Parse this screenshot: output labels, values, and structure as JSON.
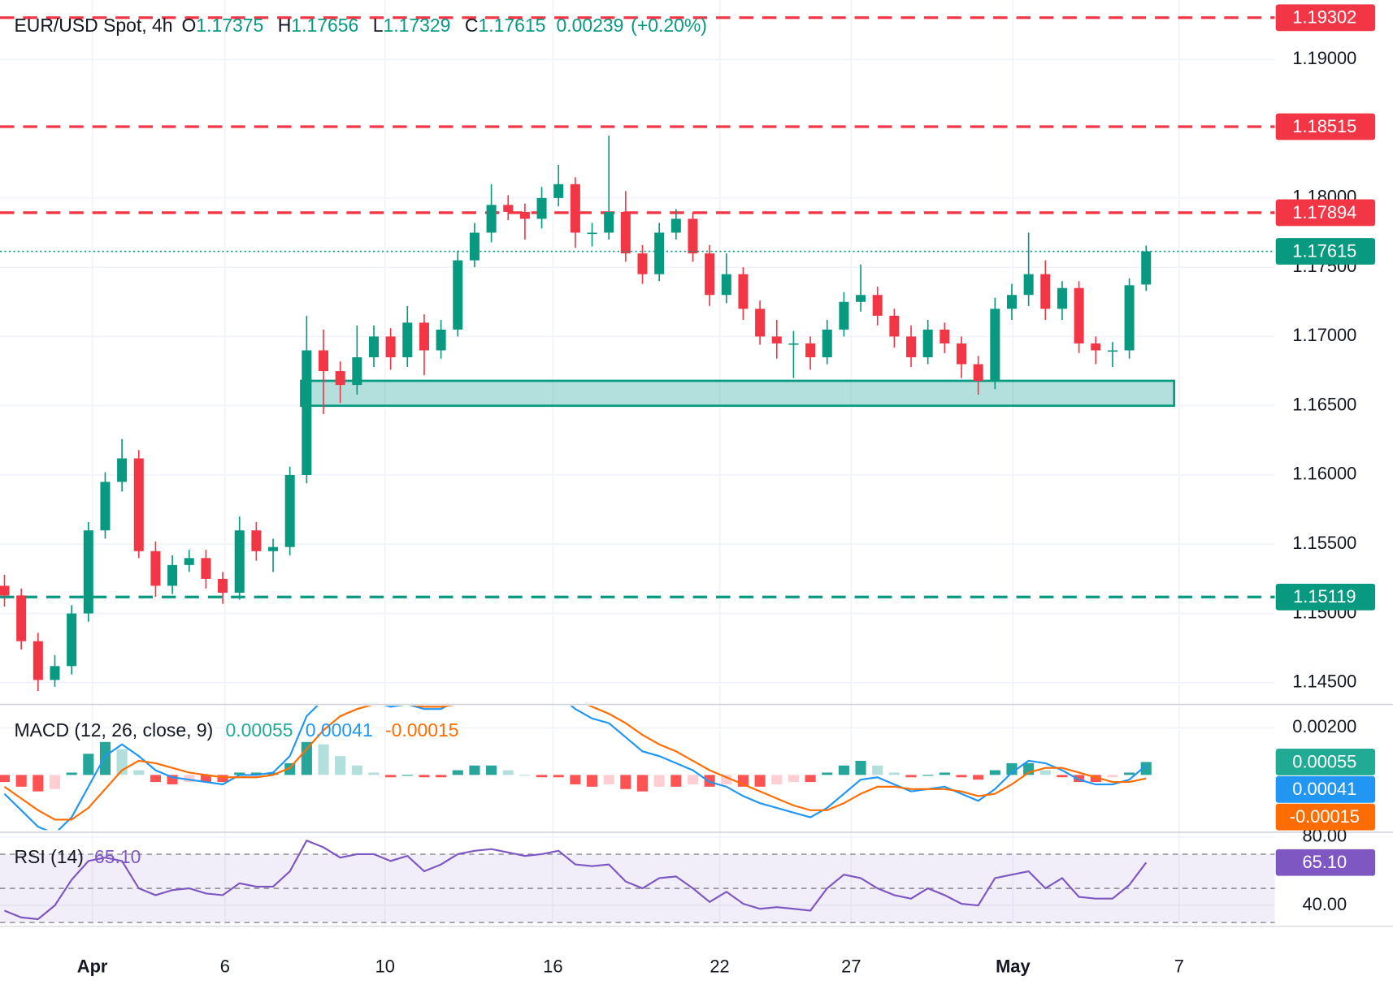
{
  "chart_data": {
    "type": "candlestick",
    "title": "EUR/USD Spot, 4h",
    "header": {
      "labels": [
        "O",
        "H",
        "L",
        "C"
      ],
      "change": 0.00239,
      "change_pct": "(+0.20%)"
    },
    "up_color": "#089981",
    "down_color": "#f23645",
    "x": [
      0,
      3,
      6,
      9,
      12,
      15,
      18,
      21,
      24,
      27,
      30,
      33,
      36,
      39,
      42,
      45,
      48,
      51,
      54,
      57,
      60,
      63,
      66,
      69,
      72,
      75,
      78,
      81,
      84,
      87,
      90,
      93,
      96,
      99,
      102,
      105,
      108,
      111,
      114,
      117,
      120,
      123,
      126,
      129,
      132,
      135,
      138,
      141,
      144,
      147,
      150,
      153,
      156,
      159,
      162,
      165,
      168,
      171,
      174,
      177,
      180,
      183,
      186,
      189,
      192,
      195,
      198,
      201,
      204
    ],
    "open": [
      1.152,
      1.1513,
      1.148,
      1.1452,
      1.1462,
      1.15,
      1.156,
      1.1595,
      1.1612,
      1.1545,
      1.152,
      1.1535,
      1.154,
      1.1525,
      1.1515,
      1.156,
      1.1545,
      1.1548,
      1.16,
      1.169,
      1.1675,
      1.1665,
      1.1685,
      1.17,
      1.1685,
      1.171,
      1.169,
      1.1705,
      1.1755,
      1.1775,
      1.1795,
      1.179,
      1.1785,
      1.18,
      1.181,
      1.1775,
      1.1775,
      1.179,
      1.176,
      1.1745,
      1.1775,
      1.1785,
      1.176,
      1.173,
      1.1745,
      1.172,
      1.17,
      1.1695,
      1.1695,
      1.1685,
      1.1705,
      1.1725,
      1.173,
      1.1715,
      1.17,
      1.1685,
      1.1705,
      1.1695,
      1.168,
      1.1668,
      1.172,
      1.173,
      1.1745,
      1.172,
      1.1735,
      1.1695,
      1.169,
      1.169,
      1.17375
    ],
    "high": [
      1.1528,
      1.1518,
      1.1486,
      1.147,
      1.1506,
      1.1566,
      1.1602,
      1.1626,
      1.1618,
      1.1552,
      1.1542,
      1.1546,
      1.1546,
      1.153,
      1.157,
      1.1566,
      1.1554,
      1.1606,
      1.1715,
      1.1705,
      1.1682,
      1.1708,
      1.1708,
      1.1706,
      1.1722,
      1.1716,
      1.1712,
      1.1762,
      1.1782,
      1.181,
      1.1802,
      1.1796,
      1.1808,
      1.1824,
      1.1815,
      1.1782,
      1.1845,
      1.1805,
      1.1766,
      1.1782,
      1.1792,
      1.179,
      1.1766,
      1.176,
      1.175,
      1.1726,
      1.1712,
      1.1704,
      1.17,
      1.1712,
      1.1732,
      1.1752,
      1.1736,
      1.172,
      1.1708,
      1.1712,
      1.171,
      1.17,
      1.1686,
      1.1728,
      1.1738,
      1.1775,
      1.1755,
      1.174,
      1.174,
      1.17,
      1.1696,
      1.1742,
      1.17656
    ],
    "low": [
      1.1505,
      1.1474,
      1.1444,
      1.1447,
      1.1456,
      1.1494,
      1.1554,
      1.1588,
      1.154,
      1.1512,
      1.1514,
      1.153,
      1.1518,
      1.1507,
      1.151,
      1.1538,
      1.153,
      1.1542,
      1.1594,
      1.1644,
      1.1652,
      1.1658,
      1.1678,
      1.1676,
      1.1678,
      1.1672,
      1.1684,
      1.17,
      1.175,
      1.1768,
      1.1784,
      1.177,
      1.1778,
      1.1794,
      1.1764,
      1.1765,
      1.177,
      1.1754,
      1.1738,
      1.174,
      1.177,
      1.1754,
      1.1722,
      1.1724,
      1.1712,
      1.1694,
      1.1684,
      1.167,
      1.1676,
      1.168,
      1.17,
      1.1718,
      1.1708,
      1.1692,
      1.1678,
      1.168,
      1.1688,
      1.167,
      1.1658,
      1.1662,
      1.1712,
      1.1722,
      1.1712,
      1.1712,
      1.1688,
      1.168,
      1.1678,
      1.1684,
      1.17329
    ],
    "close": [
      1.1513,
      1.148,
      1.1452,
      1.1462,
      1.15,
      1.156,
      1.1595,
      1.1612,
      1.1545,
      1.152,
      1.1535,
      1.154,
      1.1525,
      1.1515,
      1.156,
      1.1545,
      1.1548,
      1.16,
      1.169,
      1.1675,
      1.1665,
      1.1685,
      1.17,
      1.1685,
      1.171,
      1.169,
      1.1705,
      1.1755,
      1.1775,
      1.1795,
      1.179,
      1.1785,
      1.18,
      1.181,
      1.1775,
      1.1775,
      1.179,
      1.176,
      1.1745,
      1.1775,
      1.1785,
      1.176,
      1.173,
      1.1745,
      1.172,
      1.17,
      1.1695,
      1.1695,
      1.1685,
      1.1705,
      1.1725,
      1.173,
      1.1715,
      1.17,
      1.1685,
      1.1705,
      1.1695,
      1.168,
      1.1668,
      1.172,
      1.173,
      1.1745,
      1.172,
      1.1735,
      1.1695,
      1.169,
      1.169,
      1.1737,
      1.17615
    ],
    "xlim": [
      -0.8,
      227
    ],
    "xticks": [
      {
        "value": 15.7,
        "label": "Apr"
      },
      {
        "value": 39.4,
        "label": "6"
      },
      {
        "value": 68,
        "label": "10"
      },
      {
        "value": 98,
        "label": "16"
      },
      {
        "value": 127.8,
        "label": "22"
      },
      {
        "value": 151.3,
        "label": "27"
      },
      {
        "value": 180.2,
        "label": "May"
      },
      {
        "value": 209.9,
        "label": "7"
      }
    ],
    "ylim": [
      1.14353,
      1.19429
    ],
    "yticks": [
      {
        "value": 1.145,
        "label": "1.14500"
      },
      {
        "value": 1.15,
        "label": "1.15000"
      },
      {
        "value": 1.155,
        "label": "1.15500"
      },
      {
        "value": 1.16,
        "label": "1.16000"
      },
      {
        "value": 1.165,
        "label": "1.16500"
      },
      {
        "value": 1.17,
        "label": "1.17000"
      },
      {
        "value": 1.175,
        "label": "1.17500"
      },
      {
        "value": 1.18,
        "label": "1.18000"
      },
      {
        "value": 1.19,
        "label": "1.19000"
      }
    ],
    "grid": true,
    "levels": [
      {
        "value": 1.19302,
        "color": "#f23645"
      },
      {
        "value": 1.18515,
        "color": "#f23645"
      },
      {
        "value": 1.17894,
        "color": "#f23645"
      },
      {
        "value": 1.15119,
        "color": "#089981"
      }
    ],
    "zone": {
      "x": [
        53,
        209
      ],
      "y": [
        1.165,
        1.1668
      ],
      "color": "#26a69a"
    },
    "macd": {
      "title": "MACD (12, 26, close, 9)",
      "ylim": [
        -0.00234,
        0.00294
      ],
      "yticks": [
        {
          "value": 0.002,
          "label": "0.00200"
        }
      ],
      "histogram": {
        "color": "#22ab94",
        "values": [
          -0.0003,
          -0.0005,
          -0.0007,
          -0.0006,
          0.0001,
          0.0009,
          0.0014,
          0.0011,
          0.0002,
          -0.0003,
          -0.0004,
          -0.0003,
          -0.0003,
          -0.0003,
          0.0001,
          0.0001,
          0.0001,
          0.0005,
          0.0014,
          0.0013,
          0.0008,
          0.0004,
          0.0001,
          -0.0001,
          0.0,
          -0.0001,
          -0.0001,
          0.0002,
          0.0004,
          0.0004,
          0.0002,
          0.0,
          -0.0001,
          -0.0001,
          -0.0004,
          -0.0005,
          -0.0004,
          -0.0006,
          -0.0007,
          -0.0005,
          -0.0005,
          -0.0004,
          -0.0005,
          -0.0004,
          -0.0005,
          -0.0005,
          -0.0004,
          -0.0003,
          -0.0003,
          0.0001,
          0.0004,
          0.0006,
          0.0004,
          0.0001,
          -0.0001,
          0.0,
          0.0001,
          -0.0001,
          -0.0002,
          0.0002,
          0.0005,
          0.0005,
          0.0002,
          -0.0001,
          -0.0003,
          -0.0003,
          -0.0001,
          0.0001,
          0.00055
        ]
      },
      "macd": {
        "color": "#2196f3",
        "values": [
          -0.0008,
          -0.0015,
          -0.0022,
          -0.0025,
          -0.0018,
          -0.0005,
          0.0008,
          0.0013,
          0.0008,
          0.0002,
          -0.0001,
          -0.0002,
          -0.0003,
          -0.0004,
          0.0,
          0.0,
          0.0001,
          0.0008,
          0.0025,
          0.0032,
          0.0033,
          0.0032,
          0.0031,
          0.0029,
          0.003,
          0.0028,
          0.0028,
          0.0032,
          0.0036,
          0.0038,
          0.0038,
          0.0036,
          0.0035,
          0.0034,
          0.0028,
          0.0024,
          0.0022,
          0.0016,
          0.001,
          0.0008,
          0.0005,
          0.0002,
          -0.0003,
          -0.0005,
          -0.0009,
          -0.0012,
          -0.0014,
          -0.0016,
          -0.0018,
          -0.0014,
          -0.0008,
          -0.0002,
          -0.0001,
          -0.0004,
          -0.0007,
          -0.0006,
          -0.0005,
          -0.0008,
          -0.0011,
          -0.0006,
          0.0001,
          0.0006,
          0.0005,
          0.0002,
          -0.0002,
          -0.0004,
          -0.0004,
          -0.0002,
          0.00041
        ]
      },
      "signal": {
        "color": "#ff6d00",
        "values": [
          -0.0005,
          -0.001,
          -0.0015,
          -0.0019,
          -0.0019,
          -0.0014,
          -0.0006,
          0.0002,
          0.0006,
          0.0005,
          0.0003,
          0.0001,
          0.0,
          -0.0001,
          -0.0001,
          -0.0001,
          0.0,
          0.0003,
          0.0011,
          0.0019,
          0.0025,
          0.0028,
          0.003,
          0.003,
          0.003,
          0.0029,
          0.0029,
          0.003,
          0.0032,
          0.0034,
          0.0036,
          0.0036,
          0.0036,
          0.0035,
          0.0032,
          0.0029,
          0.0026,
          0.0022,
          0.0017,
          0.0013,
          0.001,
          0.0006,
          0.0002,
          -0.0001,
          -0.0004,
          -0.0007,
          -0.001,
          -0.0013,
          -0.0015,
          -0.0015,
          -0.0012,
          -0.0008,
          -0.0005,
          -0.0005,
          -0.0006,
          -0.0006,
          -0.0006,
          -0.0007,
          -0.0009,
          -0.0008,
          -0.0004,
          0.0001,
          0.0003,
          0.0003,
          0.0001,
          -0.0001,
          -0.0003,
          -0.0003,
          -0.00015
        ]
      }
    },
    "rsi": {
      "title": "RSI (14)",
      "color": "#7e57c2",
      "ylim": [
        29.6,
        81.56
      ],
      "yticks": [
        {
          "value": 80,
          "label": "80.00"
        },
        {
          "value": 40,
          "label": "40.00"
        }
      ],
      "bands": [
        70,
        50,
        30
      ],
      "current": {
        "value": 65.1,
        "label": "65.10"
      },
      "values": [
        37,
        33,
        32,
        40,
        55,
        66,
        68,
        66,
        50,
        46,
        49,
        50,
        47,
        46,
        53,
        51,
        51,
        60,
        78,
        74,
        68,
        70,
        70,
        66,
        69,
        60,
        64,
        70,
        72,
        73,
        71,
        69,
        70,
        72,
        64,
        63,
        64,
        54,
        50,
        56,
        57,
        50,
        42,
        48,
        41,
        38,
        39,
        38,
        37,
        50,
        58,
        56,
        50,
        46,
        44,
        50,
        46,
        41,
        40,
        56,
        58,
        60,
        50,
        56,
        45,
        44,
        44,
        52,
        65.1
      ]
    }
  }
}
